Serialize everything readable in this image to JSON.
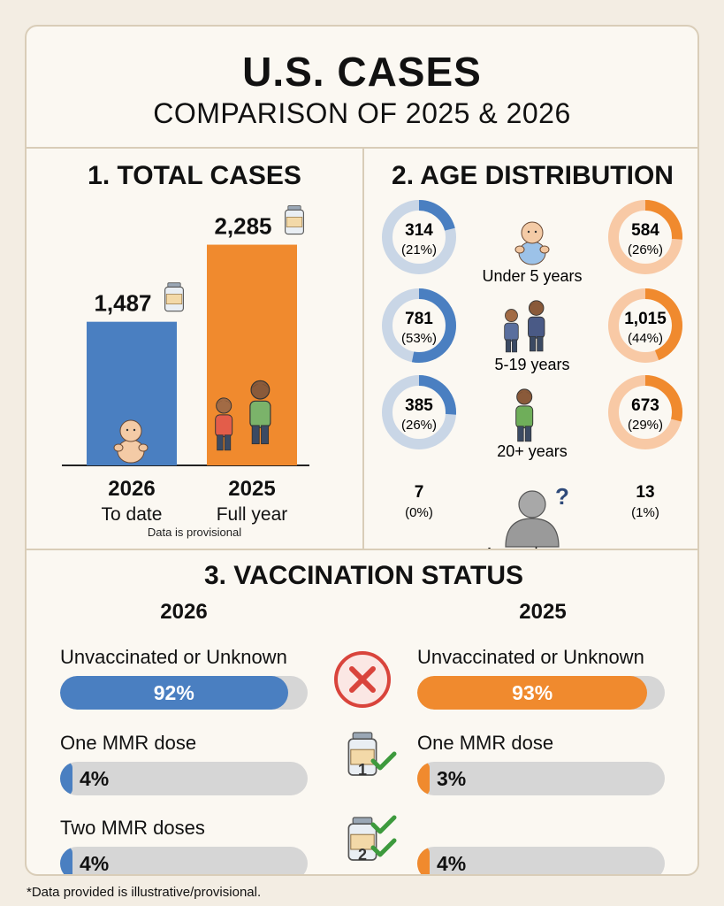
{
  "header": {
    "title": "U.S. CASES",
    "subtitle": "COMPARISON OF 2025 & 2026"
  },
  "colors": {
    "blue": "#4a7fc1",
    "orange": "#f08a2e",
    "blue_light": "#c9d6e6",
    "orange_light": "#f8c9a5",
    "track": "#d6d6d6",
    "red": "#d9443c"
  },
  "chart_data": [
    {
      "type": "bar",
      "title": "1. TOTAL CASES",
      "categories": [
        "2026",
        "2025"
      ],
      "category_sublabels": [
        "To date",
        "Full year"
      ],
      "values": [
        1487,
        2285
      ],
      "value_labels": [
        "1,487",
        "2,285"
      ],
      "colors": [
        "#4a7fc1",
        "#f08a2e"
      ],
      "ylim": [
        0,
        2400
      ],
      "note": "Data is provisional",
      "icons": [
        "baby-icon",
        "children-icon",
        "vaccine-vial-icon"
      ]
    },
    {
      "type": "pie",
      "title": "2. AGE DISTRIBUTION",
      "groups": [
        {
          "label": "Under 5 years",
          "v2026": 314,
          "v2026_label": "314",
          "p2026": 21,
          "p2026_label": "(21%)",
          "v2025": 584,
          "v2025_label": "584",
          "p2025": 26,
          "p2025_label": "(26%)",
          "icon": "baby-icon"
        },
        {
          "label": "5-19 years",
          "v2026": 781,
          "v2026_label": "781",
          "p2026": 53,
          "p2026_label": "(53%)",
          "v2025": 1015,
          "v2025_label": "1,015",
          "p2025": 44,
          "p2025_label": "(44%)",
          "icon": "students-icon"
        },
        {
          "label": "20+ years",
          "v2026": 385,
          "v2026_label": "385",
          "p2026": 26,
          "p2026_label": "(26%)",
          "v2025": 673,
          "v2025_label": "673",
          "p2025": 29,
          "p2025_label": "(29%)",
          "icon": "adult-icon"
        },
        {
          "label": "Age unknown",
          "v2026": 7,
          "v2026_label": "7",
          "p2026": 0,
          "p2026_label": "(0%)",
          "v2025": 13,
          "v2025_label": "13",
          "p2025": 1,
          "p2025_label": "(1%)",
          "icon": "unknown-person-icon"
        }
      ]
    },
    {
      "type": "bar",
      "title": "3. VACCINATION STATUS",
      "years": [
        "2026",
        "2025"
      ],
      "rows": [
        {
          "label_2026": "Unvaccinated or Unknown",
          "label_2025": "Unvaccinated or Unknown",
          "v2026": 92,
          "v2026_label": "92%",
          "v2025": 93,
          "v2025_label": "93%",
          "icon": "red-x-icon"
        },
        {
          "label_2026": "One MMR dose",
          "label_2025": "One MMR dose",
          "v2026": 4,
          "v2026_label": "4%",
          "v2025": 3,
          "v2025_label": "3%",
          "icon": "vial-one-dose-icon"
        },
        {
          "label_2026": "Two MMR doses",
          "label_2025": "",
          "v2026": 4,
          "v2026_label": "4%",
          "v2025": 4,
          "v2025_label": "4%",
          "icon": "vial-two-doses-icon"
        }
      ],
      "xlim": [
        0,
        100
      ]
    }
  ],
  "footnote": "*Data provided is illustrative/provisional."
}
